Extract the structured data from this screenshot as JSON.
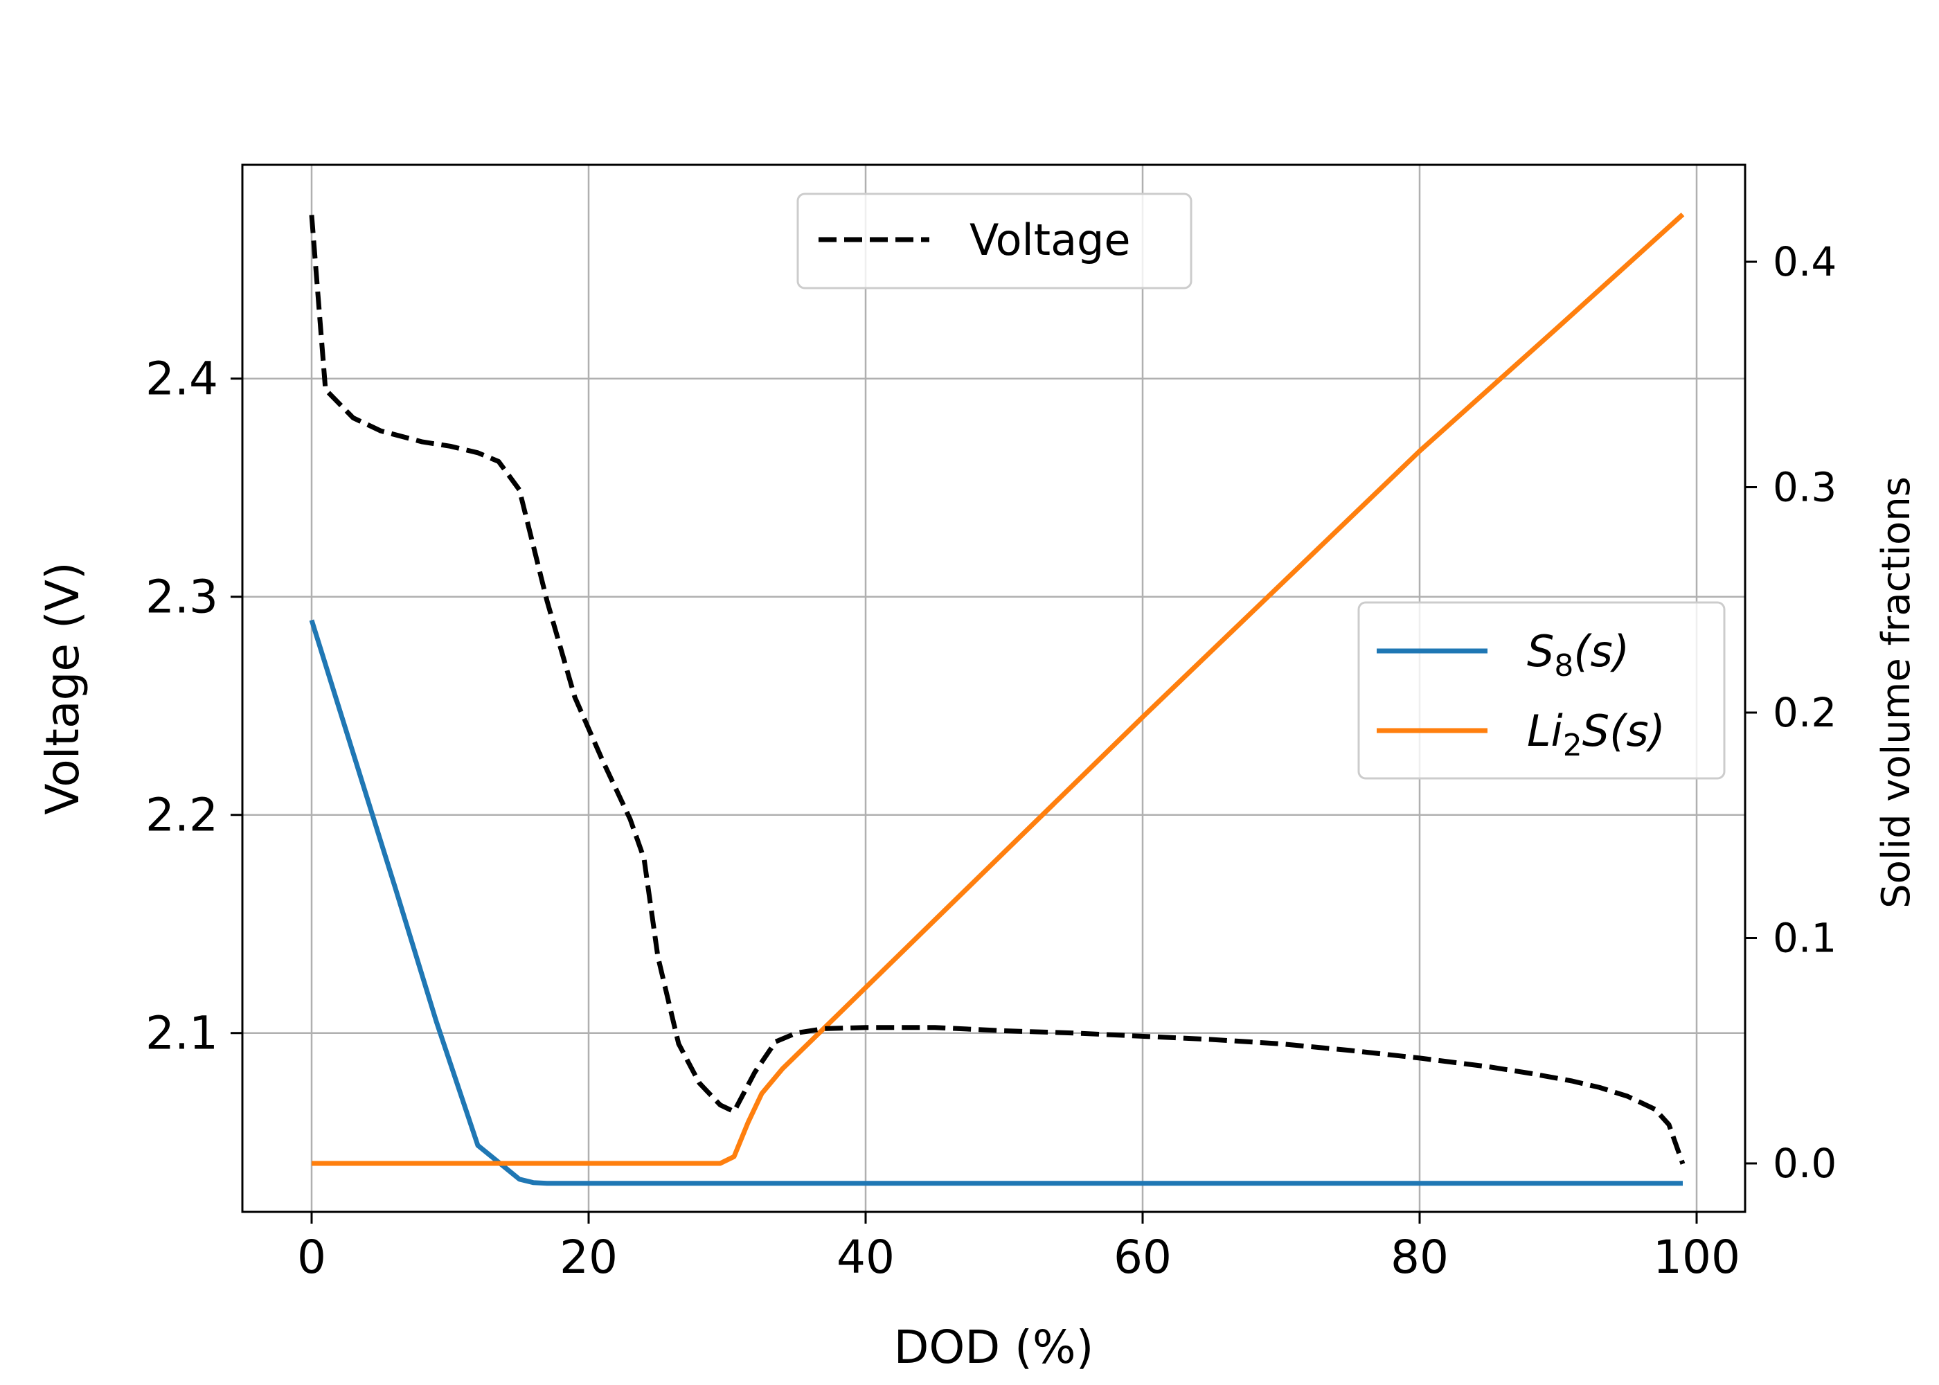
{
  "chart_data": {
    "type": "line",
    "xlabel": "DOD (%)",
    "ylabel": "Voltage (V)",
    "y2label": "Solid volume fractions",
    "xlim": [
      -5,
      103.5
    ],
    "ylim": [
      2.018,
      2.498
    ],
    "y2lim": [
      -0.0215,
      0.443
    ],
    "xticks": [
      0,
      20,
      40,
      60,
      80,
      100
    ],
    "xtick_labels": [
      "0",
      "20",
      "40",
      "60",
      "80",
      "100"
    ],
    "yticks": [
      2.1,
      2.2,
      2.3,
      2.4
    ],
    "ytick_labels": [
      "2.1",
      "2.2",
      "2.3",
      "2.4"
    ],
    "y2ticks": [
      0.0,
      0.1,
      0.2,
      0.3,
      0.4
    ],
    "y2tick_labels": [
      "0.0",
      "0.1",
      "0.2",
      "0.3",
      "0.4"
    ],
    "grid": true,
    "legends": [
      {
        "placement": "upper-center",
        "entries": [
          "Voltage"
        ]
      },
      {
        "placement": "center-right",
        "entries": [
          "S8(s)",
          "Li2S(s)"
        ]
      }
    ],
    "series": [
      {
        "name": "Voltage",
        "axis": "left",
        "style": "dashed",
        "color": "#000000",
        "x": [
          0,
          1,
          3,
          5,
          8,
          10,
          12,
          13.5,
          15,
          17,
          19,
          21,
          23,
          24,
          25,
          26.5,
          28,
          29.5,
          30.5,
          32,
          33.5,
          35,
          37,
          40,
          45,
          50,
          55,
          60,
          65,
          70,
          75,
          80,
          85,
          88,
          91,
          93,
          95,
          97,
          98,
          99
        ],
        "y": [
          2.475,
          2.395,
          2.382,
          2.376,
          2.371,
          2.369,
          2.366,
          2.362,
          2.349,
          2.298,
          2.254,
          2.225,
          2.198,
          2.18,
          2.135,
          2.095,
          2.077,
          2.067,
          2.064,
          2.082,
          2.096,
          2.1,
          2.102,
          2.1025,
          2.1025,
          2.101,
          2.1,
          2.0985,
          2.097,
          2.095,
          2.092,
          2.0885,
          2.0845,
          2.0815,
          2.078,
          2.075,
          2.071,
          2.065,
          2.058,
          2.04
        ]
      },
      {
        "name": "S8(s)",
        "axis": "right",
        "style": "solid",
        "color": "#1f77b4",
        "x": [
          0,
          3,
          6,
          9,
          12,
          14,
          15,
          16,
          17,
          20,
          30,
          40,
          60,
          80,
          99
        ],
        "y": [
          0.241,
          0.182,
          0.123,
          0.063,
          0.008,
          -0.002,
          -0.007,
          -0.0085,
          -0.0088,
          -0.0088,
          -0.0088,
          -0.0088,
          -0.0088,
          -0.0088,
          -0.0088
        ]
      },
      {
        "name": "Li2S(s)",
        "axis": "right",
        "style": "solid",
        "color": "#ff7f0e",
        "x": [
          0,
          10,
          20,
          29.5,
          30.5,
          31.5,
          32.5,
          34,
          36,
          38,
          40,
          50,
          60,
          70,
          80,
          90,
          99
        ],
        "y": [
          0.0,
          0.0,
          0.0,
          0.0,
          0.003,
          0.018,
          0.031,
          0.042,
          0.054,
          0.066,
          0.078,
          0.138,
          0.198,
          0.257,
          0.316,
          0.371,
          0.421
        ]
      }
    ]
  },
  "legend_entries": {
    "voltage": "Voltage",
    "s8_base": "S",
    "s8_sub": "8",
    "s8_tail": "(s)",
    "li2s_base": "Li",
    "li2s_sub": "2",
    "li2s_tail": "S(s)"
  }
}
